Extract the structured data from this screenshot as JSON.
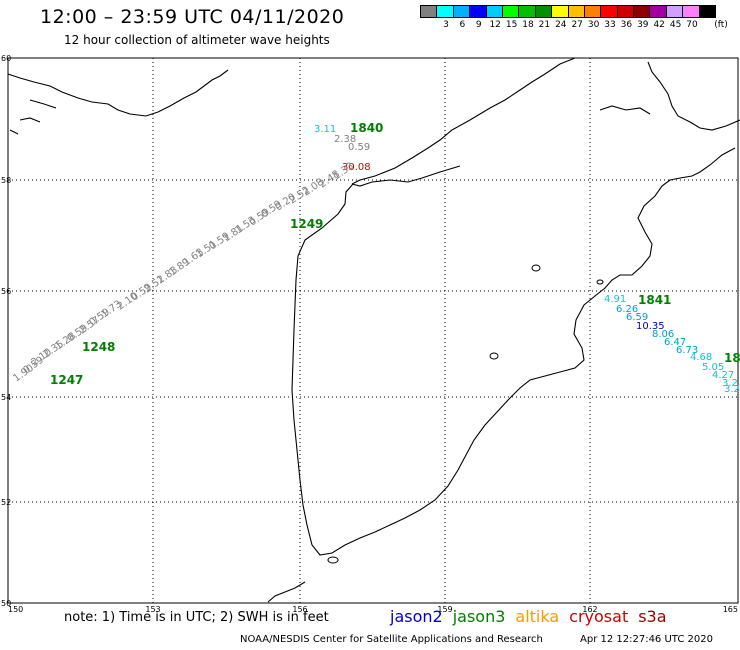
{
  "header": {
    "title": "12:00 – 23:59 UTC 04/11/2020",
    "subtitle": "12 hour collection of altimeter wave heights"
  },
  "legend": {
    "colors": [
      "#808080",
      "#00ffff",
      "#00b0ff",
      "#0000ff",
      "#00ccff",
      "#00ff00",
      "#00c000",
      "#009000",
      "#ffff00",
      "#ffc000",
      "#ff8000",
      "#ff0000",
      "#d00000",
      "#900000",
      "#a000a0",
      "#d0a0ff",
      "#ff80ff",
      "#000000"
    ],
    "labels": [
      "3",
      "6",
      "9",
      "12",
      "15",
      "18",
      "21",
      "24",
      "27",
      "30",
      "33",
      "36",
      "39",
      "42",
      "45",
      "70"
    ],
    "unit": "(ft)"
  },
  "map": {
    "lat_labels": [
      "60",
      "58",
      "56",
      "54",
      "52",
      "50"
    ],
    "lon_labels": [
      "150",
      "153",
      "156",
      "159",
      "162",
      "165"
    ],
    "track_labels": [
      {
        "text": "1840",
        "color": "#008000",
        "bold": true
      },
      {
        "text": "1249",
        "color": "#008000",
        "bold": true
      },
      {
        "text": "1248",
        "color": "#008000",
        "bold": true
      },
      {
        "text": "1247",
        "color": "#008000",
        "bold": true
      },
      {
        "text": "1841",
        "color": "#008000",
        "bold": true
      },
      {
        "text": "18",
        "color": "#008000",
        "bold": true
      }
    ],
    "swh_values": [
      {
        "text": "3.11",
        "color": "#00c8e0"
      },
      {
        "text": "2.38",
        "color": "#808080"
      },
      {
        "text": "0.59",
        "color": "#808080"
      },
      {
        "text": "30.08",
        "color": "#d00000"
      },
      {
        "text": "1.33",
        "color": "#808080"
      },
      {
        "text": "2.48",
        "color": "#808080"
      },
      {
        "text": "2.08",
        "color": "#808080"
      },
      {
        "text": "2.52",
        "color": "#808080"
      },
      {
        "text": "0.20",
        "color": "#808080"
      },
      {
        "text": "0.59",
        "color": "#808080"
      },
      {
        "text": "0.59",
        "color": "#808080"
      },
      {
        "text": "1.53",
        "color": "#808080"
      },
      {
        "text": "1.81",
        "color": "#808080"
      },
      {
        "text": "0.59",
        "color": "#808080"
      },
      {
        "text": "1.51",
        "color": "#808080"
      },
      {
        "text": "1.63",
        "color": "#808080"
      },
      {
        "text": "1.89",
        "color": "#808080"
      },
      {
        "text": "1.83",
        "color": "#808080"
      },
      {
        "text": "2.52",
        "color": "#808080"
      },
      {
        "text": "0.59",
        "color": "#808080"
      },
      {
        "text": "2.10",
        "color": "#808080"
      },
      {
        "text": "1.73",
        "color": "#808080"
      },
      {
        "text": "0.59",
        "color": "#808080"
      },
      {
        "text": "2.57",
        "color": "#808080"
      },
      {
        "text": "0.59",
        "color": "#808080"
      },
      {
        "text": "1.28",
        "color": "#808080"
      },
      {
        "text": "2.35",
        "color": "#808080"
      },
      {
        "text": "2.10",
        "color": "#808080"
      },
      {
        "text": "0.59",
        "color": "#808080"
      },
      {
        "text": "1.90",
        "color": "#808080"
      },
      {
        "text": "4.91",
        "color": "#00c8e0"
      },
      {
        "text": "6.26",
        "color": "#00a0d0"
      },
      {
        "text": "6.59",
        "color": "#00a0d0"
      },
      {
        "text": "10.35",
        "color": "#0000c0"
      },
      {
        "text": "8.06",
        "color": "#00a0d0"
      },
      {
        "text": "6.47",
        "color": "#00a0d0"
      },
      {
        "text": "6.73",
        "color": "#00a0d0"
      },
      {
        "text": "4.68",
        "color": "#00c8e0"
      },
      {
        "text": "5.05",
        "color": "#00c8e0"
      },
      {
        "text": "4.27",
        "color": "#00c8e0"
      },
      {
        "text": "3.2",
        "color": "#00c8e0"
      },
      {
        "text": "3.2",
        "color": "#00c8e0"
      }
    ]
  },
  "footer": {
    "note": "note:  1) Time is in UTC;  2) SWH is in feet",
    "satellites": [
      {
        "name": "jason2",
        "color": "#0000cc"
      },
      {
        "name": "jason3",
        "color": "#008000"
      },
      {
        "name": "altika",
        "color": "#ff9900"
      },
      {
        "name": "cryosat",
        "color": "#cc0000"
      },
      {
        "name": "s3a",
        "color": "#990000"
      }
    ],
    "credit": "NOAA/NESDIS Center for Satellite Applications and Research",
    "timestamp": "Apr 12 12:27:46 UTC 2020"
  }
}
